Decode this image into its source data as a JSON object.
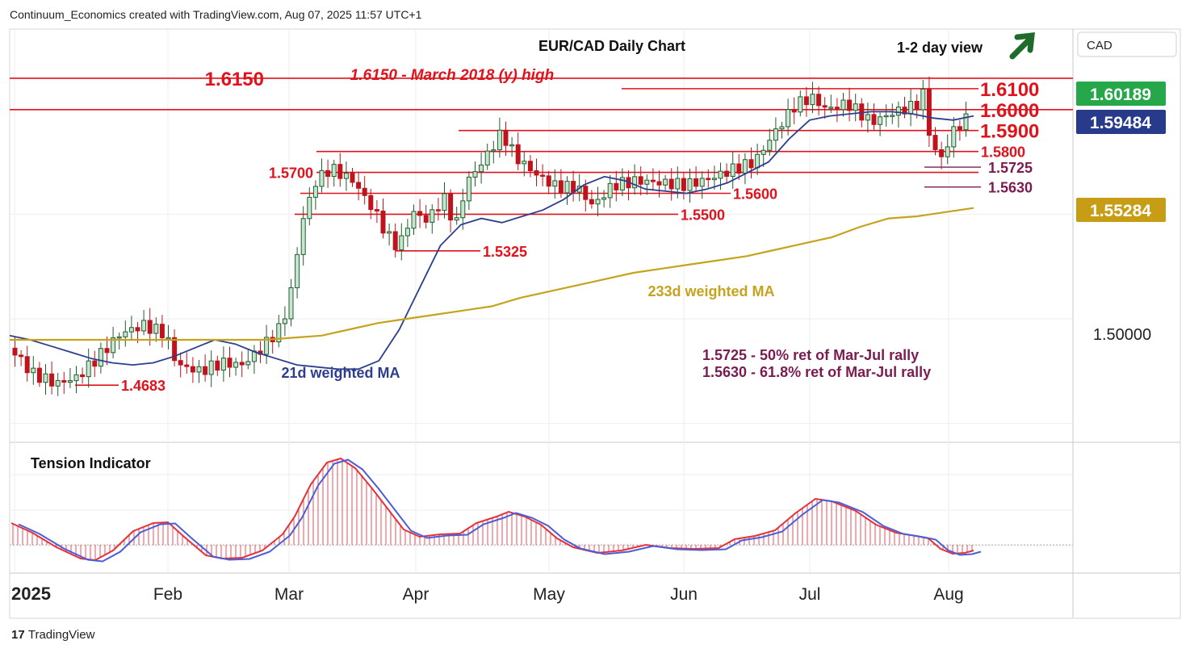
{
  "header": {
    "caption": "Continuum_Economics created with TradingView.com, Aug 07, 2025 11:57 UTC+1"
  },
  "footer": {
    "brand": "TradingView",
    "logo_text": "17"
  },
  "colors": {
    "red": "#e0121b",
    "up_fill": "#c7e5cf",
    "up_border": "#1f5e2d",
    "down": "#c0141c",
    "ma21": "#2d3e8c",
    "ma233": "#c7a21d",
    "purple": "#7a1c52",
    "arrow": "#1f6b2a",
    "tension_red": "#e5323a",
    "tension_blue": "#4a5ed8"
  },
  "chart_data": {
    "type": "candlestick",
    "title": "EUR/CAD Daily Chart",
    "view_label": "1-2 day view",
    "view_direction": "up",
    "currency": "CAD",
    "ylim": [
      1.441,
      1.6385
    ],
    "x_ticks": [
      "2025",
      "Feb",
      "Mar",
      "Apr",
      "May",
      "Jun",
      "Jul",
      "Aug"
    ],
    "y_ticks": [
      "1.50000"
    ],
    "price_tags": [
      {
        "value": 1.60189,
        "label": "1.60189",
        "style": "green"
      },
      {
        "value": 1.59484,
        "label": "1.59484",
        "style": "navy"
      },
      {
        "value": 1.55284,
        "label": "1.55284",
        "style": "gold"
      }
    ],
    "levels": [
      {
        "value": 1.615,
        "label": "1.6150",
        "span": "full",
        "label_side": "left",
        "big": true
      },
      {
        "value": 1.61,
        "label": "1.6100",
        "span": "jul-aug",
        "label_side": "right",
        "big": true
      },
      {
        "value": 1.6,
        "label": "1.6000",
        "span": "full",
        "label_side": "right",
        "big": true
      },
      {
        "value": 1.59,
        "label": "1.5900",
        "span": "apr-aug",
        "label_side": "right",
        "big": true
      },
      {
        "value": 1.58,
        "label": "1.5800",
        "span": "mar-aug",
        "label_side": "right",
        "big": false
      },
      {
        "value": 1.57,
        "label": "1.5700",
        "span": "mar-aug",
        "label_side": "left",
        "big": false
      },
      {
        "value": 1.56,
        "label": "1.5600",
        "span": "mar-jun",
        "label_side": "right",
        "big": false
      },
      {
        "value": 1.55,
        "label": "1.5500",
        "span": "mar-may",
        "label_side": "right",
        "big": false
      },
      {
        "value": 1.5325,
        "label": "1.5325",
        "span": "short-apr",
        "label_side": "right",
        "big": false
      },
      {
        "value": 1.4683,
        "label": "1.4683",
        "span": "short-jan",
        "label_side": "right",
        "big": false
      }
    ],
    "fib_levels": [
      {
        "value": 1.5725,
        "label": "1.5725"
      },
      {
        "value": 1.563,
        "label": "1.5630"
      }
    ],
    "annotations": {
      "high_note": "1.6150 - March 2018 (y) high",
      "fib_note_1": "1.5725 - 50% ret of Mar-Jul rally",
      "fib_note_2": "1.5630 - 61.8% ret of Mar-Jul rally",
      "ma233_label": "233d weighted MA",
      "ma21_label": "21d weighted MA"
    },
    "indicator": {
      "name": "Tension Indicator"
    },
    "series": [
      {
        "name": "21d weighted MA",
        "values": [
          1.492,
          1.49,
          1.487,
          1.484,
          1.481,
          1.479,
          1.478,
          1.479,
          1.482,
          1.486,
          1.49,
          1.488,
          1.484,
          1.481,
          1.478,
          1.477,
          1.476,
          1.476,
          1.48,
          1.495,
          1.515,
          1.535,
          1.545,
          1.548,
          1.546,
          1.549,
          1.552,
          1.557,
          1.564,
          1.568,
          1.566,
          1.562,
          1.561,
          1.56,
          1.562,
          1.565,
          1.57,
          1.575,
          1.586,
          1.595,
          1.597,
          1.598,
          1.599,
          1.599,
          1.598,
          1.596,
          1.595,
          1.597
        ]
      },
      {
        "name": "233d weighted MA",
        "values": [
          1.49,
          1.49,
          1.49,
          1.49,
          1.49,
          1.49,
          1.49,
          1.49,
          1.49,
          1.49,
          1.491,
          1.492,
          1.495,
          1.498,
          1.5,
          1.502,
          1.504,
          1.506,
          1.51,
          1.513,
          1.516,
          1.519,
          1.522,
          1.524,
          1.526,
          1.528,
          1.53,
          1.533,
          1.536,
          1.539,
          1.544,
          1.548,
          1.549,
          1.551,
          1.553
        ]
      }
    ]
  }
}
